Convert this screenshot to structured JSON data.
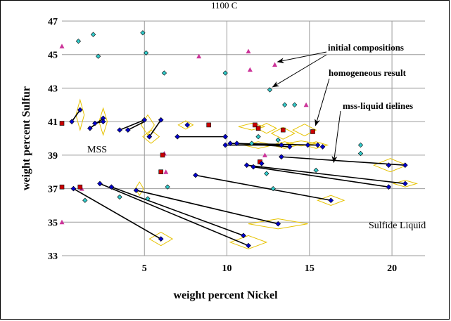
{
  "chart_data": {
    "type": "scatter",
    "title": "1100 C",
    "xlabel": "weight percent Nickel",
    "ylabel": "weight percent Sulfur",
    "xlim": [
      0,
      22
    ],
    "ylim": [
      33,
      47
    ],
    "xticks": [
      5,
      10,
      15,
      20
    ],
    "yticks": [
      33,
      35,
      37,
      39,
      41,
      43,
      45,
      47
    ],
    "grid": true,
    "legend": "none",
    "colors": {
      "mss_liquid": "#0000cc",
      "homogeneous": "#cc0000",
      "initial_cyan": "#33cccc",
      "initial_magenta": "#cc3399",
      "tieline": "#000000",
      "ellipse": "#e6c200",
      "grid": "#9b9b9b"
    },
    "region_labels": [
      "MSS",
      "Sulfide Liquid"
    ],
    "annotations": [
      {
        "text": "initial compositions",
        "targets": [
          [
            12.9,
            44.4
          ],
          [
            12.6,
            42.9
          ]
        ]
      },
      {
        "text": "homogeneous result",
        "targets": [
          [
            15.2,
            40.6
          ]
        ]
      },
      {
        "text": "mss-liquid tielines",
        "targets": [
          [
            16.3,
            38.4
          ]
        ]
      }
    ],
    "initial_cyan": [
      [
        1.0,
        45.8
      ],
      [
        1.9,
        46.2
      ],
      [
        2.2,
        44.9
      ],
      [
        4.9,
        46.3
      ],
      [
        5.1,
        45.1
      ],
      [
        6.2,
        43.9
      ],
      [
        9.9,
        43.9
      ],
      [
        12.6,
        42.9
      ],
      [
        13.5,
        42.0
      ],
      [
        14.1,
        42.0
      ],
      [
        13.1,
        39.9
      ],
      [
        12.4,
        37.9
      ],
      [
        12.8,
        37.0
      ],
      [
        15.4,
        38.1
      ],
      [
        6.4,
        37.1
      ],
      [
        3.5,
        36.5
      ],
      [
        1.4,
        36.3
      ],
      [
        18.1,
        39.6
      ],
      [
        18.1,
        39.1
      ],
      [
        11.5,
        39.7
      ],
      [
        11.9,
        40.1
      ],
      [
        5.2,
        36.4
      ]
    ],
    "initial_magenta": [
      [
        0.0,
        45.5
      ],
      [
        8.3,
        44.9
      ],
      [
        11.3,
        45.2
      ],
      [
        11.4,
        44.1
      ],
      [
        12.9,
        44.4
      ],
      [
        14.8,
        42.0
      ],
      [
        12.3,
        39.0
      ],
      [
        6.3,
        38.0
      ],
      [
        6.2,
        39.1
      ],
      [
        1.2,
        37.0
      ],
      [
        0.0,
        35.0
      ]
    ],
    "homogeneous": [
      [
        0.0,
        40.9
      ],
      [
        0.0,
        37.1
      ],
      [
        1.1,
        37.1
      ],
      [
        6.1,
        39.0
      ],
      [
        6.0,
        38.0
      ],
      [
        8.9,
        40.8
      ],
      [
        11.7,
        40.8
      ],
      [
        11.9,
        40.6
      ],
      [
        13.4,
        40.5
      ],
      [
        15.2,
        40.4
      ],
      [
        12.0,
        38.6
      ]
    ],
    "tielines": [
      [
        [
          0.6,
          41.0
        ],
        [
          1.1,
          41.7
        ]
      ],
      [
        [
          1.7,
          40.6
        ],
        [
          2.5,
          41.2
        ]
      ],
      [
        [
          2.0,
          40.9
        ],
        [
          2.5,
          41.0
        ]
      ],
      [
        [
          3.5,
          40.5
        ],
        [
          5.0,
          41.1
        ]
      ],
      [
        [
          4.0,
          40.5
        ],
        [
          5.0,
          41.0
        ]
      ],
      [
        [
          5.3,
          40.1
        ],
        [
          6.0,
          41.1
        ]
      ],
      [
        [
          7.0,
          40.1
        ],
        [
          9.9,
          40.1
        ]
      ],
      [
        [
          9.9,
          39.6
        ],
        [
          13.3,
          39.6
        ]
      ],
      [
        [
          10.2,
          39.7
        ],
        [
          15.5,
          39.6
        ]
      ],
      [
        [
          10.6,
          39.7
        ],
        [
          13.8,
          39.5
        ]
      ],
      [
        [
          13.3,
          38.9
        ],
        [
          20.8,
          38.4
        ]
      ],
      [
        [
          11.2,
          38.4
        ],
        [
          20.8,
          37.3
        ]
      ],
      [
        [
          11.6,
          38.3
        ],
        [
          19.8,
          37.1
        ]
      ],
      [
        [
          8.1,
          37.8
        ],
        [
          16.3,
          36.3
        ]
      ],
      [
        [
          2.3,
          37.3
        ],
        [
          11.3,
          33.6
        ]
      ],
      [
        [
          3.0,
          37.1
        ],
        [
          11.0,
          34.2
        ]
      ],
      [
        [
          4.5,
          36.9
        ],
        [
          13.1,
          34.9
        ]
      ],
      [
        [
          0.7,
          37.0
        ],
        [
          6.0,
          34.0
        ]
      ]
    ],
    "mss_points": [
      [
        0.6,
        41.0
      ],
      [
        1.1,
        41.7
      ],
      [
        1.7,
        40.6
      ],
      [
        2.0,
        40.9
      ],
      [
        2.5,
        41.2
      ],
      [
        2.5,
        41.0
      ],
      [
        3.5,
        40.5
      ],
      [
        4.0,
        40.5
      ],
      [
        5.0,
        41.1
      ],
      [
        5.3,
        40.1
      ],
      [
        6.0,
        41.1
      ],
      [
        7.0,
        40.1
      ],
      [
        9.9,
        40.1
      ],
      [
        9.9,
        39.6
      ],
      [
        10.2,
        39.7
      ],
      [
        10.6,
        39.7
      ],
      [
        11.2,
        38.4
      ],
      [
        11.6,
        38.3
      ],
      [
        8.1,
        37.8
      ],
      [
        2.3,
        37.3
      ],
      [
        3.0,
        37.1
      ],
      [
        4.5,
        36.9
      ],
      [
        0.7,
        37.0
      ]
    ],
    "liquid_points": [
      [
        7.6,
        40.8
      ],
      [
        13.3,
        39.6
      ],
      [
        13.8,
        39.5
      ],
      [
        15.5,
        39.6
      ],
      [
        13.3,
        38.9
      ],
      [
        20.8,
        38.4
      ],
      [
        19.8,
        38.4
      ],
      [
        20.8,
        37.3
      ],
      [
        19.8,
        37.1
      ],
      [
        16.3,
        36.3
      ],
      [
        11.3,
        33.6
      ],
      [
        11.0,
        34.2
      ],
      [
        13.1,
        34.9
      ],
      [
        6.0,
        34.0
      ],
      [
        14.9,
        39.6
      ],
      [
        15.8,
        39.5
      ],
      [
        12.1,
        38.5
      ]
    ],
    "uncertainty_ellipses": [
      [
        1.1,
        41.4,
        0.25,
        0.9
      ],
      [
        2.5,
        41.0,
        0.25,
        0.8
      ],
      [
        5.2,
        40.8,
        0.4,
        0.6
      ],
      [
        5.4,
        40.1,
        0.5,
        0.4
      ],
      [
        7.5,
        40.8,
        0.45,
        0.25
      ],
      [
        11.5,
        40.7,
        0.8,
        0.2
      ],
      [
        12.4,
        40.6,
        0.6,
        0.3
      ],
      [
        13.4,
        40.3,
        0.7,
        0.35
      ],
      [
        14.7,
        40.5,
        0.7,
        0.35
      ],
      [
        11.9,
        39.6,
        0.9,
        0.2
      ],
      [
        13.5,
        39.6,
        0.8,
        0.2
      ],
      [
        15.4,
        39.6,
        0.7,
        0.2
      ],
      [
        19.9,
        38.4,
        1.0,
        0.4
      ],
      [
        20.8,
        37.3,
        0.7,
        0.2
      ],
      [
        16.3,
        36.3,
        0.8,
        0.3
      ],
      [
        13.1,
        34.9,
        1.8,
        0.3
      ],
      [
        11.3,
        33.8,
        1.1,
        0.4
      ],
      [
        6.0,
        34.0,
        0.7,
        0.4
      ],
      [
        4.7,
        37.0,
        0.25,
        0.4
      ],
      [
        14.5,
        39.7,
        0.9,
        0.15
      ]
    ]
  }
}
